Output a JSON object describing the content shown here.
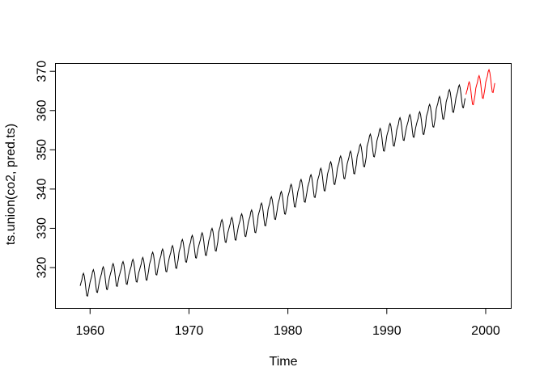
{
  "figure": {
    "background": "#ffffff",
    "plot_line_color": "#000000"
  },
  "chart_data": {
    "type": "line",
    "title": "",
    "xlabel": "Time",
    "ylabel": "ts.union(co2, pred.ts)",
    "x_ticks": [
      1960,
      1970,
      1980,
      1990,
      2000
    ],
    "y_ticks": [
      320,
      330,
      340,
      350,
      360,
      370
    ],
    "xlim": [
      1956.5,
      2002.58
    ],
    "ylim": [
      309.6,
      372.0
    ],
    "grid": false,
    "legend_position": "none",
    "frequency": 12,
    "series": [
      {
        "name": "co2",
        "color": "#000000",
        "start_year": 1959,
        "start_month": 1,
        "end_year": 1997,
        "end_month": 12,
        "values": [
          315.33,
          316.13,
          316.83,
          318.03,
          318.53,
          317.83,
          316.33,
          314.43,
          312.83,
          312.73,
          313.93,
          315.13,
          316.25,
          317.05,
          317.75,
          318.95,
          319.45,
          318.75,
          317.25,
          315.35,
          313.75,
          313.65,
          314.85,
          316.05,
          316.99,
          317.79,
          318.49,
          319.69,
          320.19,
          319.49,
          317.99,
          316.09,
          314.49,
          314.39,
          315.59,
          316.79,
          317.8,
          318.6,
          319.3,
          320.5,
          321.0,
          320.3,
          318.8,
          316.9,
          315.3,
          315.2,
          316.4,
          317.6,
          318.33,
          319.13,
          319.83,
          321.03,
          321.53,
          320.83,
          319.33,
          317.43,
          315.83,
          315.73,
          316.93,
          318.13,
          318.89,
          319.69,
          320.39,
          321.59,
          322.09,
          321.39,
          319.89,
          317.99,
          316.39,
          316.29,
          317.49,
          318.69,
          319.37,
          320.17,
          320.87,
          322.07,
          322.57,
          321.87,
          320.37,
          318.47,
          316.87,
          316.77,
          317.97,
          319.17,
          320.71,
          321.51,
          322.21,
          323.41,
          323.91,
          323.21,
          321.71,
          319.81,
          318.21,
          318.11,
          319.31,
          320.51,
          321.52,
          322.32,
          323.02,
          324.22,
          324.72,
          324.02,
          322.52,
          320.62,
          319.02,
          318.92,
          320.12,
          321.32,
          322.39,
          323.19,
          323.89,
          325.09,
          325.59,
          324.89,
          323.39,
          321.49,
          319.89,
          319.79,
          320.99,
          322.19,
          323.96,
          324.76,
          325.46,
          326.66,
          327.16,
          326.46,
          324.96,
          323.06,
          321.46,
          321.36,
          322.56,
          323.76,
          325.02,
          325.82,
          326.52,
          327.72,
          328.22,
          327.52,
          326.02,
          324.12,
          322.52,
          322.42,
          323.62,
          324.82,
          325.66,
          326.46,
          327.16,
          328.36,
          328.86,
          328.16,
          326.66,
          324.76,
          323.16,
          323.06,
          324.26,
          325.46,
          326.79,
          327.59,
          328.29,
          329.49,
          329.99,
          329.29,
          327.79,
          325.89,
          324.29,
          324.19,
          325.39,
          326.59,
          329.01,
          329.81,
          330.51,
          331.71,
          332.21,
          331.51,
          330.01,
          328.11,
          326.51,
          326.41,
          327.61,
          328.81,
          329.58,
          330.38,
          331.08,
          332.28,
          332.78,
          332.08,
          330.58,
          328.68,
          327.08,
          326.98,
          328.18,
          329.38,
          330.49,
          331.29,
          331.99,
          333.19,
          333.69,
          332.99,
          331.49,
          329.59,
          327.99,
          327.89,
          329.09,
          330.29,
          331.48,
          332.28,
          332.98,
          334.18,
          334.68,
          333.98,
          332.48,
          330.58,
          328.98,
          328.88,
          330.08,
          331.28,
          333.23,
          334.03,
          334.73,
          335.93,
          336.43,
          335.73,
          334.23,
          332.33,
          330.73,
          330.63,
          331.83,
          333.03,
          334.84,
          335.64,
          336.34,
          337.54,
          338.04,
          337.34,
          335.84,
          333.94,
          332.34,
          332.24,
          333.44,
          334.64,
          336.18,
          336.98,
          337.68,
          338.88,
          339.38,
          338.68,
          337.18,
          335.28,
          333.68,
          333.58,
          334.78,
          335.98,
          338.02,
          338.82,
          339.52,
          340.72,
          341.22,
          340.52,
          339.02,
          337.12,
          335.52,
          335.42,
          336.62,
          337.82,
          339.26,
          340.06,
          340.76,
          341.96,
          342.46,
          341.76,
          340.26,
          338.36,
          336.76,
          336.66,
          337.86,
          339.06,
          340.46,
          341.26,
          341.96,
          343.16,
          343.66,
          342.96,
          341.46,
          339.56,
          337.96,
          337.86,
          339.06,
          340.26,
          342.11,
          342.91,
          343.61,
          344.81,
          345.31,
          344.61,
          343.11,
          341.21,
          339.61,
          339.51,
          340.71,
          341.91,
          343.75,
          344.55,
          345.25,
          346.45,
          346.95,
          346.25,
          344.75,
          342.85,
          341.25,
          341.15,
          342.35,
          343.55,
          345.23,
          346.03,
          346.73,
          347.93,
          348.43,
          347.73,
          346.23,
          344.33,
          342.73,
          342.63,
          343.83,
          345.03,
          346.47,
          347.27,
          347.97,
          349.17,
          349.67,
          348.97,
          347.47,
          345.57,
          343.97,
          343.87,
          345.07,
          346.27,
          348.25,
          349.05,
          349.75,
          350.95,
          351.45,
          350.75,
          349.25,
          347.35,
          345.75,
          345.65,
          346.85,
          348.05,
          350.81,
          351.61,
          352.31,
          353.51,
          354.01,
          353.31,
          351.81,
          349.91,
          348.31,
          348.21,
          349.41,
          350.61,
          352.25,
          353.05,
          353.75,
          354.95,
          355.45,
          354.75,
          353.25,
          351.35,
          349.75,
          349.65,
          350.85,
          352.05,
          353.54,
          354.34,
          355.04,
          356.24,
          356.74,
          356.04,
          354.54,
          352.64,
          351.04,
          350.94,
          352.14,
          353.34,
          354.98,
          355.78,
          356.48,
          357.68,
          358.18,
          357.48,
          355.98,
          354.08,
          352.48,
          352.38,
          353.58,
          354.78,
          355.79,
          356.59,
          357.29,
          358.49,
          358.99,
          358.29,
          356.79,
          354.89,
          353.29,
          353.19,
          354.39,
          355.59,
          356.49,
          357.29,
          357.99,
          359.19,
          359.69,
          358.99,
          357.49,
          355.59,
          353.99,
          353.89,
          355.09,
          356.29,
          358.38,
          359.18,
          359.88,
          361.08,
          361.58,
          360.88,
          359.38,
          357.48,
          355.88,
          355.78,
          356.98,
          358.18,
          360.38,
          361.18,
          361.88,
          363.08,
          363.58,
          362.88,
          361.38,
          359.48,
          357.88,
          357.78,
          358.98,
          360.18,
          362.14,
          362.94,
          363.64,
          364.84,
          365.34,
          364.64,
          363.14,
          361.24,
          359.64,
          359.54,
          360.74,
          361.94,
          363.32,
          364.12,
          364.82,
          366.02,
          366.52,
          365.82,
          364.32,
          362.42,
          360.82,
          360.72,
          361.92,
          363.12
        ]
      },
      {
        "name": "pred.ts",
        "color": "#ff0000",
        "start_year": 1998,
        "start_month": 1,
        "end_year": 2000,
        "end_month": 12,
        "values": [
          364.1,
          364.9,
          365.6,
          366.8,
          367.3,
          366.6,
          365.1,
          363.2,
          361.6,
          361.5,
          362.7,
          363.9,
          365.7,
          366.5,
          367.2,
          368.4,
          368.9,
          368.2,
          366.7,
          364.8,
          363.2,
          363.1,
          364.3,
          365.5,
          367.2,
          368.0,
          368.7,
          369.9,
          370.4,
          369.7,
          368.2,
          366.3,
          364.7,
          364.6,
          365.8,
          367.0
        ]
      }
    ]
  }
}
